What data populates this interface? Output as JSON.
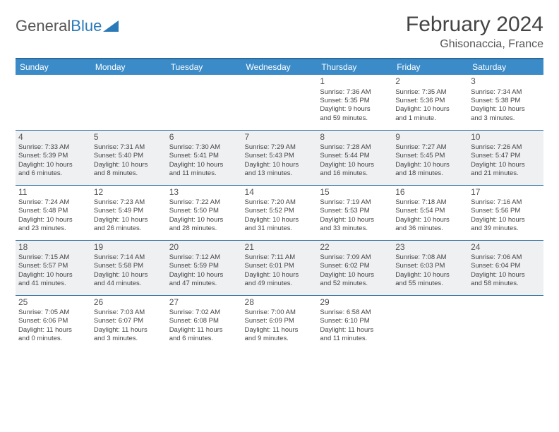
{
  "logo": {
    "text_a": "General",
    "text_b": "Blue"
  },
  "title": "February 2024",
  "location": "Ghisonaccia, France",
  "colors": {
    "header_bg": "#3b8bc8",
    "header_border": "#2a6a9e",
    "shade_bg": "#eef0f2",
    "text": "#444444"
  },
  "day_headers": [
    "Sunday",
    "Monday",
    "Tuesday",
    "Wednesday",
    "Thursday",
    "Friday",
    "Saturday"
  ],
  "weeks": [
    {
      "shade": false,
      "days": [
        null,
        null,
        null,
        null,
        {
          "n": "1",
          "sr": "Sunrise: 7:36 AM",
          "ss": "Sunset: 5:35 PM",
          "d1": "Daylight: 9 hours",
          "d2": "and 59 minutes."
        },
        {
          "n": "2",
          "sr": "Sunrise: 7:35 AM",
          "ss": "Sunset: 5:36 PM",
          "d1": "Daylight: 10 hours",
          "d2": "and 1 minute."
        },
        {
          "n": "3",
          "sr": "Sunrise: 7:34 AM",
          "ss": "Sunset: 5:38 PM",
          "d1": "Daylight: 10 hours",
          "d2": "and 3 minutes."
        }
      ]
    },
    {
      "shade": true,
      "days": [
        {
          "n": "4",
          "sr": "Sunrise: 7:33 AM",
          "ss": "Sunset: 5:39 PM",
          "d1": "Daylight: 10 hours",
          "d2": "and 6 minutes."
        },
        {
          "n": "5",
          "sr": "Sunrise: 7:31 AM",
          "ss": "Sunset: 5:40 PM",
          "d1": "Daylight: 10 hours",
          "d2": "and 8 minutes."
        },
        {
          "n": "6",
          "sr": "Sunrise: 7:30 AM",
          "ss": "Sunset: 5:41 PM",
          "d1": "Daylight: 10 hours",
          "d2": "and 11 minutes."
        },
        {
          "n": "7",
          "sr": "Sunrise: 7:29 AM",
          "ss": "Sunset: 5:43 PM",
          "d1": "Daylight: 10 hours",
          "d2": "and 13 minutes."
        },
        {
          "n": "8",
          "sr": "Sunrise: 7:28 AM",
          "ss": "Sunset: 5:44 PM",
          "d1": "Daylight: 10 hours",
          "d2": "and 16 minutes."
        },
        {
          "n": "9",
          "sr": "Sunrise: 7:27 AM",
          "ss": "Sunset: 5:45 PM",
          "d1": "Daylight: 10 hours",
          "d2": "and 18 minutes."
        },
        {
          "n": "10",
          "sr": "Sunrise: 7:26 AM",
          "ss": "Sunset: 5:47 PM",
          "d1": "Daylight: 10 hours",
          "d2": "and 21 minutes."
        }
      ]
    },
    {
      "shade": false,
      "days": [
        {
          "n": "11",
          "sr": "Sunrise: 7:24 AM",
          "ss": "Sunset: 5:48 PM",
          "d1": "Daylight: 10 hours",
          "d2": "and 23 minutes."
        },
        {
          "n": "12",
          "sr": "Sunrise: 7:23 AM",
          "ss": "Sunset: 5:49 PM",
          "d1": "Daylight: 10 hours",
          "d2": "and 26 minutes."
        },
        {
          "n": "13",
          "sr": "Sunrise: 7:22 AM",
          "ss": "Sunset: 5:50 PM",
          "d1": "Daylight: 10 hours",
          "d2": "and 28 minutes."
        },
        {
          "n": "14",
          "sr": "Sunrise: 7:20 AM",
          "ss": "Sunset: 5:52 PM",
          "d1": "Daylight: 10 hours",
          "d2": "and 31 minutes."
        },
        {
          "n": "15",
          "sr": "Sunrise: 7:19 AM",
          "ss": "Sunset: 5:53 PM",
          "d1": "Daylight: 10 hours",
          "d2": "and 33 minutes."
        },
        {
          "n": "16",
          "sr": "Sunrise: 7:18 AM",
          "ss": "Sunset: 5:54 PM",
          "d1": "Daylight: 10 hours",
          "d2": "and 36 minutes."
        },
        {
          "n": "17",
          "sr": "Sunrise: 7:16 AM",
          "ss": "Sunset: 5:56 PM",
          "d1": "Daylight: 10 hours",
          "d2": "and 39 minutes."
        }
      ]
    },
    {
      "shade": true,
      "days": [
        {
          "n": "18",
          "sr": "Sunrise: 7:15 AM",
          "ss": "Sunset: 5:57 PM",
          "d1": "Daylight: 10 hours",
          "d2": "and 41 minutes."
        },
        {
          "n": "19",
          "sr": "Sunrise: 7:14 AM",
          "ss": "Sunset: 5:58 PM",
          "d1": "Daylight: 10 hours",
          "d2": "and 44 minutes."
        },
        {
          "n": "20",
          "sr": "Sunrise: 7:12 AM",
          "ss": "Sunset: 5:59 PM",
          "d1": "Daylight: 10 hours",
          "d2": "and 47 minutes."
        },
        {
          "n": "21",
          "sr": "Sunrise: 7:11 AM",
          "ss": "Sunset: 6:01 PM",
          "d1": "Daylight: 10 hours",
          "d2": "and 49 minutes."
        },
        {
          "n": "22",
          "sr": "Sunrise: 7:09 AM",
          "ss": "Sunset: 6:02 PM",
          "d1": "Daylight: 10 hours",
          "d2": "and 52 minutes."
        },
        {
          "n": "23",
          "sr": "Sunrise: 7:08 AM",
          "ss": "Sunset: 6:03 PM",
          "d1": "Daylight: 10 hours",
          "d2": "and 55 minutes."
        },
        {
          "n": "24",
          "sr": "Sunrise: 7:06 AM",
          "ss": "Sunset: 6:04 PM",
          "d1": "Daylight: 10 hours",
          "d2": "and 58 minutes."
        }
      ]
    },
    {
      "shade": false,
      "days": [
        {
          "n": "25",
          "sr": "Sunrise: 7:05 AM",
          "ss": "Sunset: 6:06 PM",
          "d1": "Daylight: 11 hours",
          "d2": "and 0 minutes."
        },
        {
          "n": "26",
          "sr": "Sunrise: 7:03 AM",
          "ss": "Sunset: 6:07 PM",
          "d1": "Daylight: 11 hours",
          "d2": "and 3 minutes."
        },
        {
          "n": "27",
          "sr": "Sunrise: 7:02 AM",
          "ss": "Sunset: 6:08 PM",
          "d1": "Daylight: 11 hours",
          "d2": "and 6 minutes."
        },
        {
          "n": "28",
          "sr": "Sunrise: 7:00 AM",
          "ss": "Sunset: 6:09 PM",
          "d1": "Daylight: 11 hours",
          "d2": "and 9 minutes."
        },
        {
          "n": "29",
          "sr": "Sunrise: 6:58 AM",
          "ss": "Sunset: 6:10 PM",
          "d1": "Daylight: 11 hours",
          "d2": "and 11 minutes."
        },
        null,
        null
      ]
    }
  ]
}
